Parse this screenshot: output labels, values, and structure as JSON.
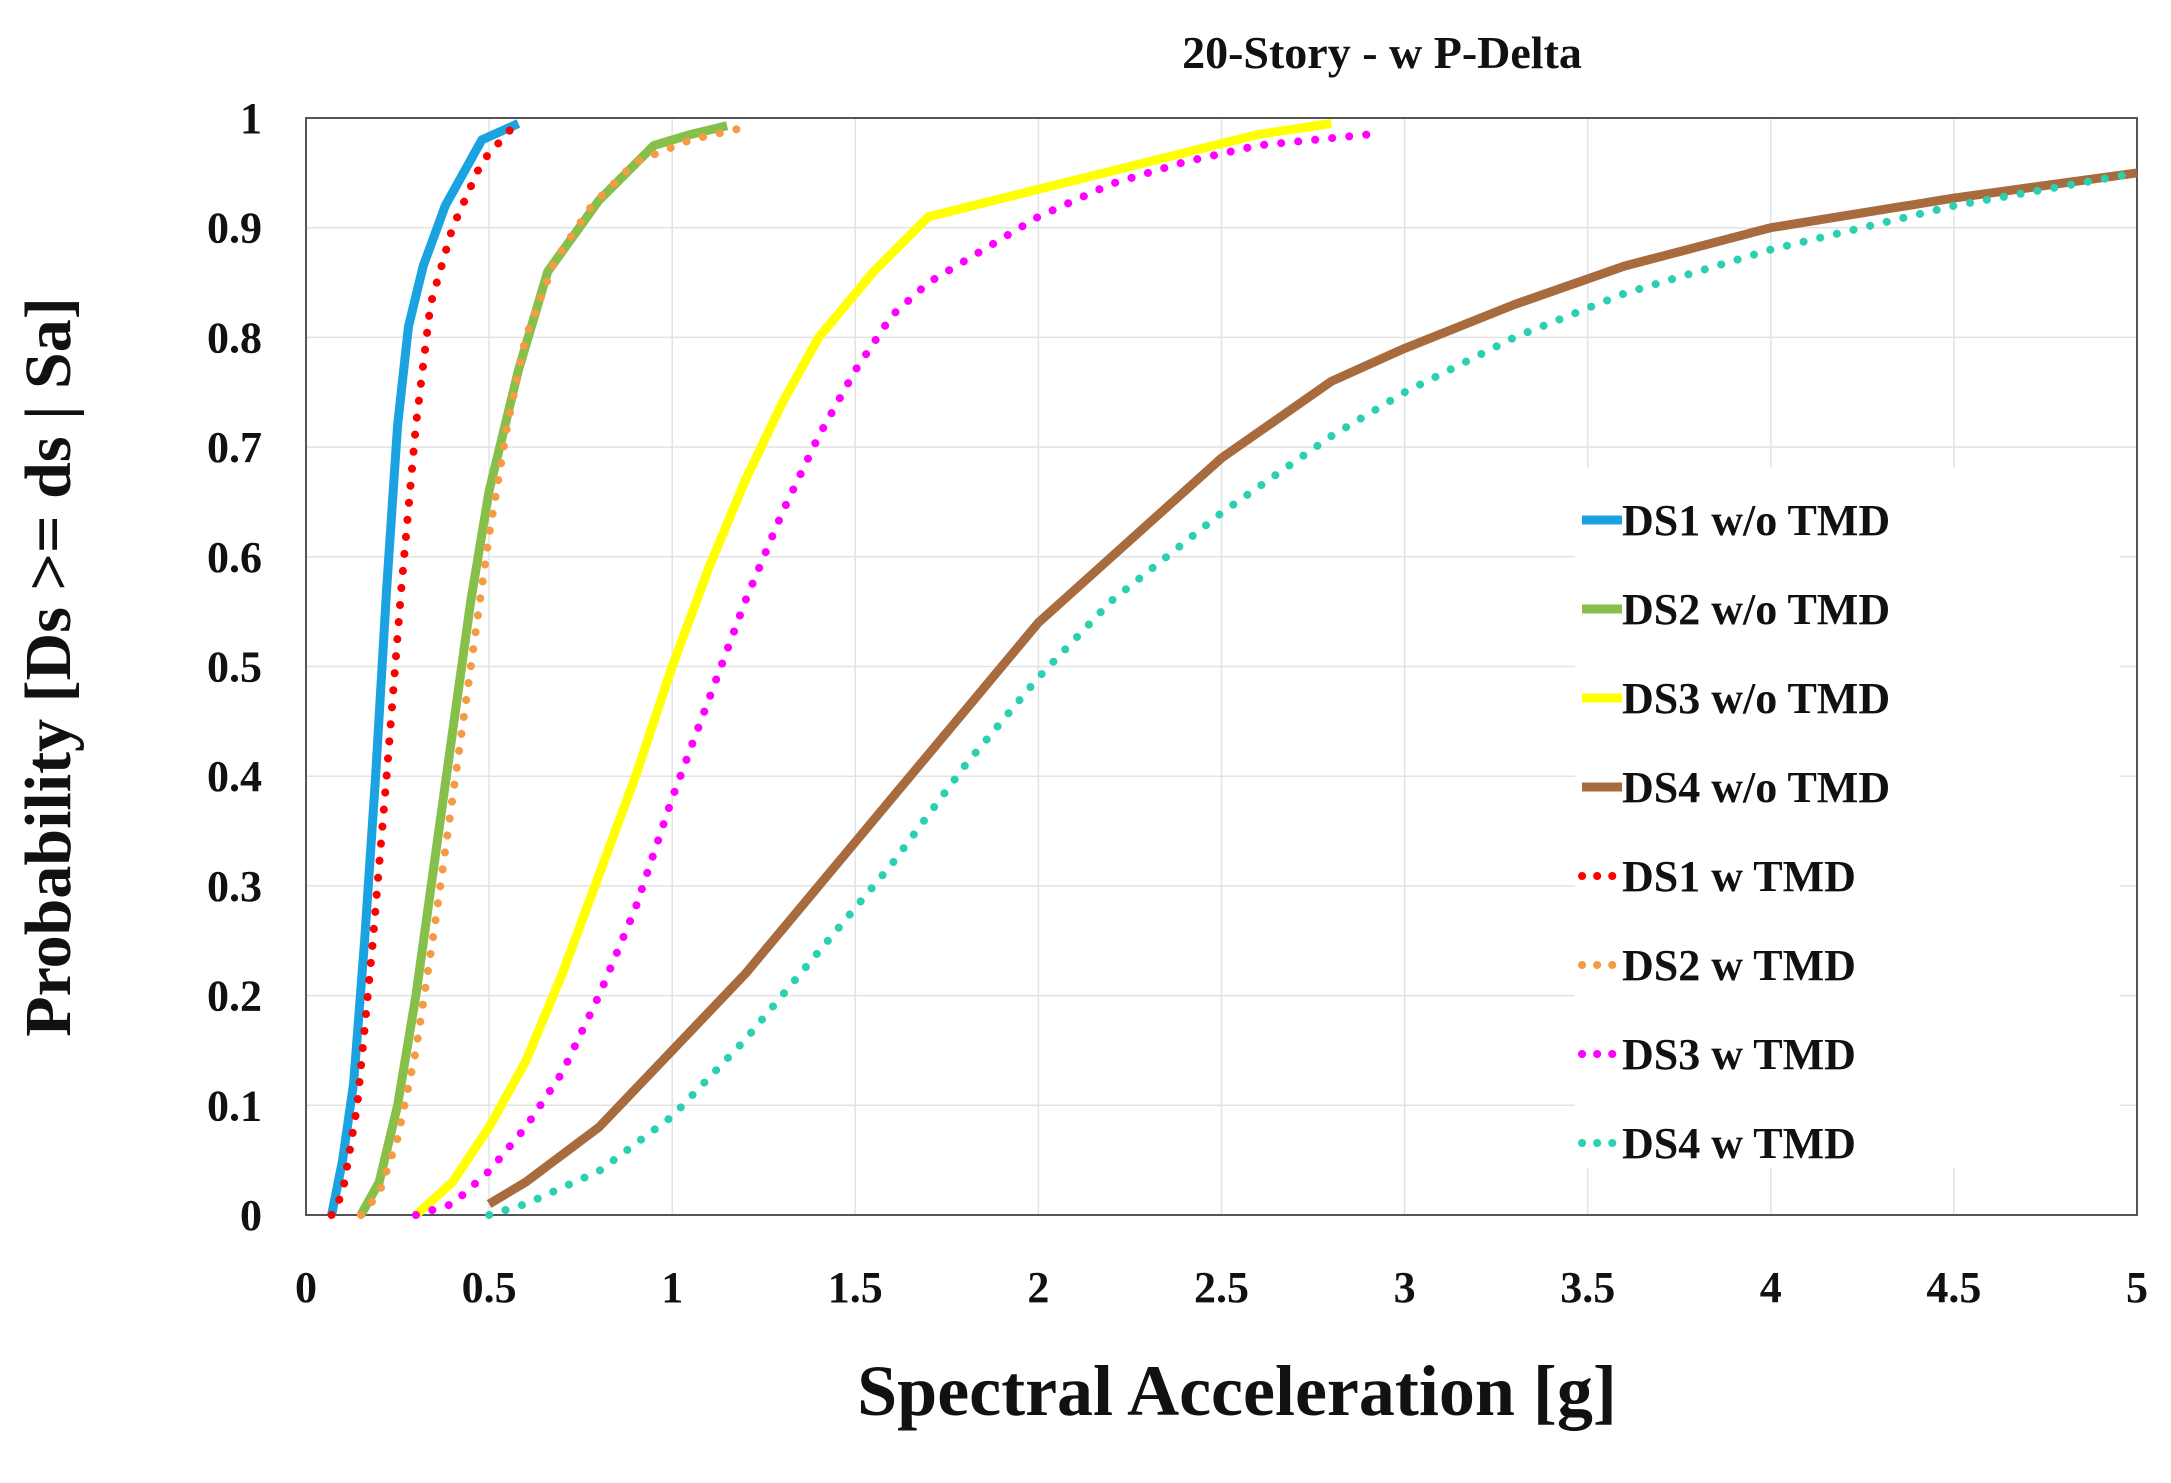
{
  "chart_data": {
    "type": "line",
    "title": "20-Story - w P-Delta",
    "xlabel": "Spectral Acceleration [g]",
    "ylabel": "Probability [Ds >= ds | Sa]",
    "xlim": [
      0,
      5
    ],
    "ylim": [
      0,
      1
    ],
    "xticks": [
      "0",
      "0.5",
      "1",
      "1.5",
      "2",
      "2.5",
      "3",
      "3.5",
      "4",
      "4.5",
      "5"
    ],
    "yticks": [
      "0",
      "0.1",
      "0.2",
      "0.3",
      "0.4",
      "0.5",
      "0.6",
      "0.7",
      "0.8",
      "0.9",
      "1"
    ],
    "grid": true,
    "legend_position": "right",
    "series": [
      {
        "name": "DS1 w/o TMD",
        "color": "#1aa3e0",
        "dash": "solid",
        "x": [
          0.07,
          0.1,
          0.13,
          0.16,
          0.19,
          0.22,
          0.25,
          0.28,
          0.32,
          0.38,
          0.48,
          0.58
        ],
        "y": [
          0.0,
          0.05,
          0.12,
          0.25,
          0.4,
          0.57,
          0.72,
          0.81,
          0.865,
          0.92,
          0.98,
          0.995
        ]
      },
      {
        "name": "DS2 w/o TMD",
        "color": "#86c04b",
        "dash": "solid",
        "x": [
          0.15,
          0.2,
          0.25,
          0.3,
          0.35,
          0.4,
          0.45,
          0.5,
          0.58,
          0.66,
          0.8,
          0.95,
          1.05,
          1.15
        ],
        "y": [
          0.0,
          0.03,
          0.1,
          0.2,
          0.32,
          0.44,
          0.56,
          0.66,
          0.77,
          0.86,
          0.925,
          0.975,
          0.985,
          0.993
        ]
      },
      {
        "name": "DS3 w/o TMD",
        "color": "#ffff00",
        "dash": "solid",
        "x": [
          0.3,
          0.4,
          0.5,
          0.6,
          0.7,
          0.8,
          0.9,
          1.0,
          1.1,
          1.2,
          1.3,
          1.4,
          1.55,
          1.7,
          2.0,
          2.3,
          2.6,
          2.8
        ],
        "y": [
          0.0,
          0.03,
          0.08,
          0.14,
          0.22,
          0.31,
          0.4,
          0.5,
          0.59,
          0.67,
          0.74,
          0.8,
          0.86,
          0.91,
          0.935,
          0.96,
          0.985,
          0.995
        ]
      },
      {
        "name": "DS4 w/o TMD",
        "color": "#a86b3e",
        "dash": "solid",
        "x": [
          0.5,
          0.6,
          0.8,
          1.0,
          1.2,
          1.4,
          1.6,
          1.8,
          2.0,
          2.2,
          2.5,
          2.8,
          3.0,
          3.3,
          3.6,
          4.0,
          4.5,
          5.0
        ],
        "y": [
          0.01,
          0.03,
          0.08,
          0.15,
          0.22,
          0.3,
          0.38,
          0.46,
          0.54,
          0.6,
          0.69,
          0.76,
          0.79,
          0.83,
          0.865,
          0.9,
          0.927,
          0.95
        ]
      },
      {
        "name": "DS1 w TMD",
        "color": "#ff0000",
        "dash": "dotted",
        "x": [
          0.07,
          0.1,
          0.14,
          0.18,
          0.22,
          0.26,
          0.3,
          0.34,
          0.4,
          0.48,
          0.56
        ],
        "y": [
          0.0,
          0.02,
          0.1,
          0.24,
          0.4,
          0.57,
          0.72,
          0.83,
          0.9,
          0.96,
          0.99
        ]
      },
      {
        "name": "DS2 w TMD",
        "color": "#f59b45",
        "dash": "dotted",
        "x": [
          0.15,
          0.2,
          0.25,
          0.3,
          0.35,
          0.4,
          0.45,
          0.5,
          0.55,
          0.6,
          0.68,
          0.78,
          0.9,
          1.05,
          1.18
        ],
        "y": [
          0.0,
          0.02,
          0.07,
          0.15,
          0.26,
          0.38,
          0.5,
          0.62,
          0.72,
          0.8,
          0.87,
          0.92,
          0.96,
          0.98,
          0.99
        ]
      },
      {
        "name": "DS3 w TMD",
        "color": "#ff00ff",
        "dash": "dotted",
        "x": [
          0.3,
          0.4,
          0.5,
          0.6,
          0.7,
          0.8,
          0.9,
          1.0,
          1.1,
          1.2,
          1.3,
          1.4,
          1.5,
          1.6,
          1.7,
          1.8,
          2.0,
          2.2,
          2.4,
          2.6,
          2.9
        ],
        "y": [
          0.0,
          0.01,
          0.04,
          0.08,
          0.13,
          0.2,
          0.28,
          0.38,
          0.47,
          0.56,
          0.64,
          0.71,
          0.77,
          0.82,
          0.85,
          0.87,
          0.91,
          0.94,
          0.96,
          0.975,
          0.985
        ]
      },
      {
        "name": "DS4 w TMD",
        "color": "#2ad0b0",
        "dash": "dotted",
        "x": [
          0.5,
          0.6,
          0.8,
          1.0,
          1.2,
          1.4,
          1.6,
          1.8,
          2.0,
          2.2,
          2.5,
          2.8,
          3.0,
          3.3,
          3.6,
          4.0,
          4.5,
          5.0
        ],
        "y": [
          0.0,
          0.01,
          0.04,
          0.09,
          0.16,
          0.24,
          0.32,
          0.41,
          0.49,
          0.56,
          0.64,
          0.71,
          0.75,
          0.8,
          0.84,
          0.88,
          0.92,
          0.95
        ]
      }
    ]
  }
}
